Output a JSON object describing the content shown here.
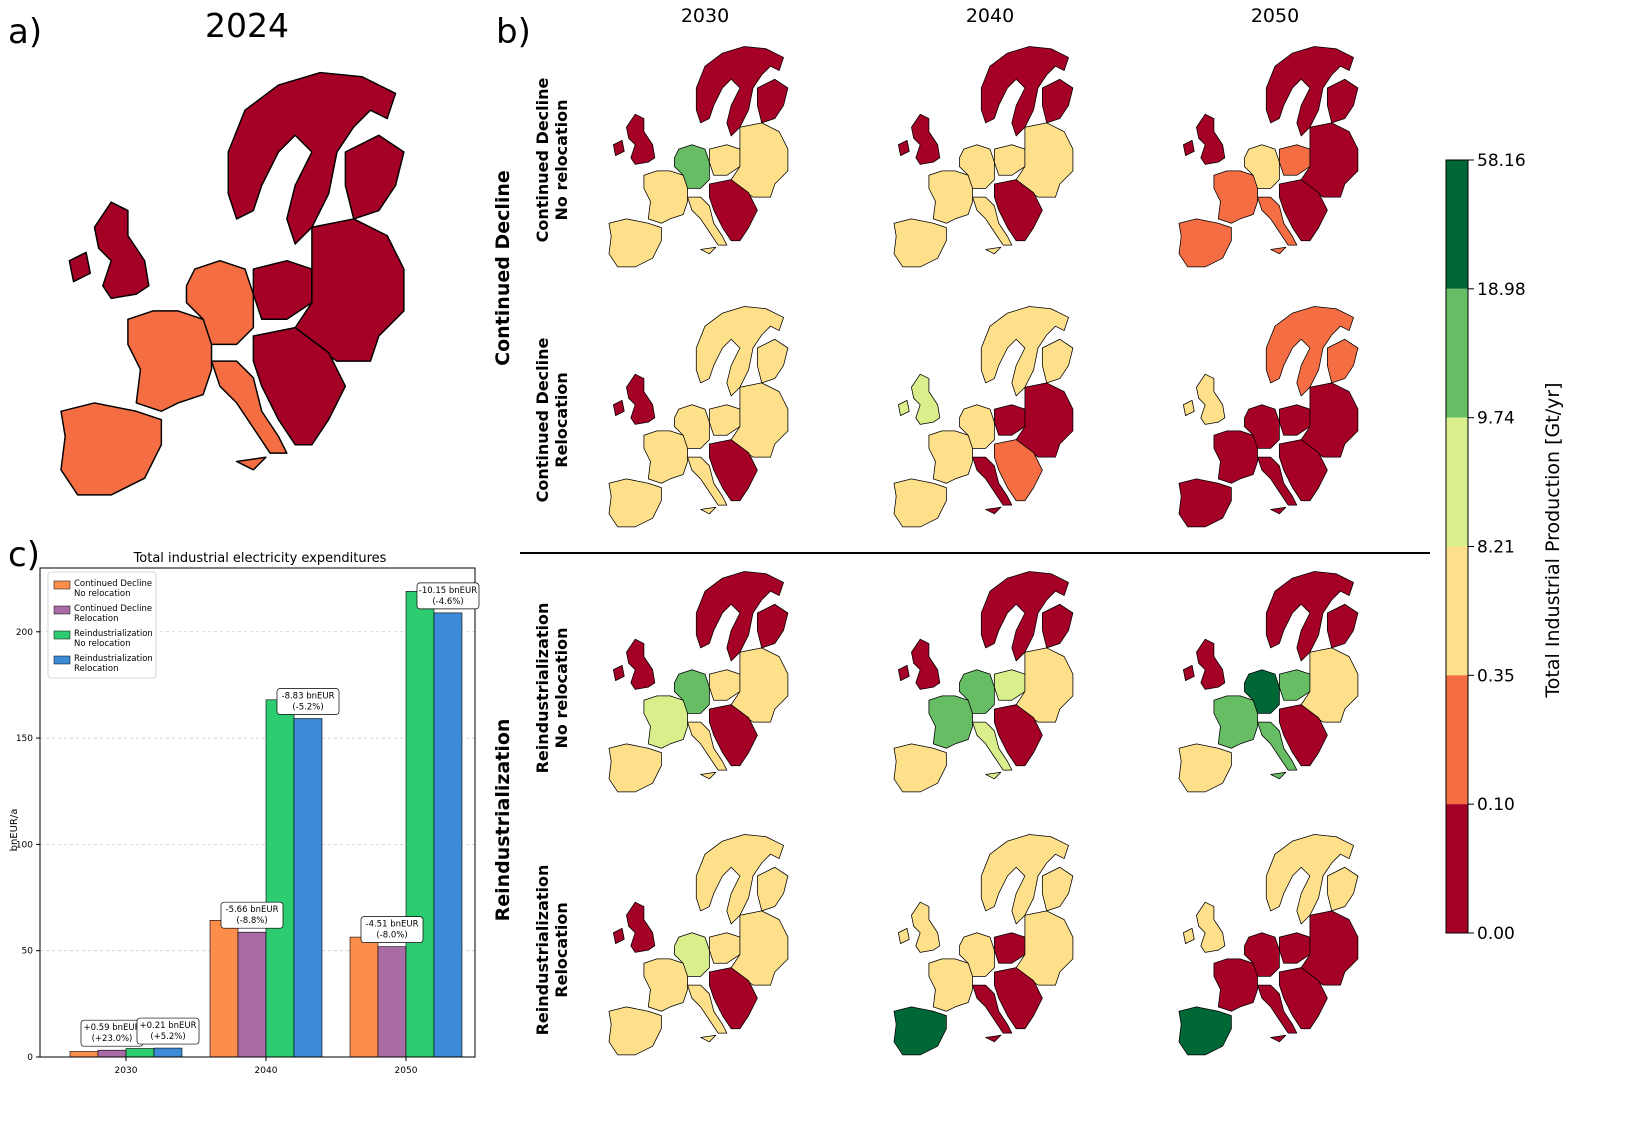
{
  "panels": {
    "a": "a)",
    "b": "b)",
    "c": "c)"
  },
  "map_a": {
    "title": "2024"
  },
  "map_b": {
    "columns": [
      "2030",
      "2040",
      "2050"
    ],
    "groups": [
      "Continued Decline",
      "Reindustrialization"
    ],
    "rows": [
      {
        "line1": "Continued Decline",
        "line2": "No relocation"
      },
      {
        "line1": "Continued Decline",
        "line2": "Relocation"
      },
      {
        "line1": "Reindustrialization",
        "line2": "No relocation"
      },
      {
        "line1": "Reindustrialization",
        "line2": "Relocation"
      }
    ]
  },
  "colorbar": {
    "label": "Total Industrial Production [Gt/yr]",
    "ticks": [
      "58.16",
      "18.98",
      "9.74",
      "8.21",
      "0.35",
      "0.10",
      "0.00"
    ],
    "colors": [
      "#006837",
      "#66bd63",
      "#d9ef8b",
      "#fee08b",
      "#f46d43",
      "#a50026"
    ]
  },
  "chart_data": {
    "type": "bar",
    "title": "Total industrial electricity expenditures",
    "xlabel": "",
    "ylabel": "bnEUR/a",
    "ylim": [
      0,
      230
    ],
    "yticks": [
      0,
      50,
      100,
      150,
      200
    ],
    "grid": true,
    "legend_position": "top-left",
    "categories": [
      "2030",
      "2040",
      "2050"
    ],
    "series": [
      {
        "name": "Continued Decline\nNo relocation",
        "color": "#fc8d4b",
        "values": [
          2.6,
          64.3,
          56.4
        ]
      },
      {
        "name": "Continued Decline\nRelocation",
        "color": "#a86ba5",
        "values": [
          3.2,
          58.7,
          51.9
        ]
      },
      {
        "name": "Reindustrialization\nNo relocation",
        "color": "#2ecc71",
        "values": [
          4.0,
          168.0,
          219.0
        ]
      },
      {
        "name": "Reindustrialization\nRelocation",
        "color": "#3d8bd6",
        "values": [
          4.2,
          159.2,
          208.9
        ]
      }
    ],
    "annotations": [
      {
        "category": "2030",
        "series": 1,
        "text": "+0.59 bnEUR\n(+23.0%)"
      },
      {
        "category": "2030",
        "series": 3,
        "text": "+0.21 bnEUR\n(+5.2%)"
      },
      {
        "category": "2040",
        "series": 1,
        "text": "-5.66 bnEUR\n(-8.8%)"
      },
      {
        "category": "2040",
        "series": 3,
        "text": "-8.83 bnEUR\n(-5.2%)"
      },
      {
        "category": "2050",
        "series": 1,
        "text": "-4.51 bnEUR\n(-8.0%)"
      },
      {
        "category": "2050",
        "series": 3,
        "text": "-10.15 bnEUR\n(-4.6%)"
      }
    ]
  },
  "map_colors": {
    "a": {
      "nordic": 5,
      "uk": 5,
      "france": 4,
      "iberia": 4,
      "germany": 4,
      "italy": 4,
      "east": 5,
      "balkan": 5,
      "pol": 5
    },
    "b": [
      [
        {
          "nordic": 5,
          "uk": 5,
          "france": 3,
          "iberia": 3,
          "germany": 1,
          "italy": 3,
          "east": 3,
          "balkan": 5,
          "pol": 3
        },
        {
          "nordic": 5,
          "uk": 5,
          "france": 3,
          "iberia": 3,
          "germany": 3,
          "italy": 3,
          "east": 3,
          "balkan": 5,
          "pol": 3
        },
        {
          "nordic": 5,
          "uk": 5,
          "france": 4,
          "iberia": 4,
          "germany": 3,
          "italy": 4,
          "east": 5,
          "balkan": 5,
          "pol": 4
        }
      ],
      [
        {
          "nordic": 3,
          "uk": 5,
          "france": 3,
          "iberia": 3,
          "germany": 3,
          "italy": 3,
          "east": 3,
          "balkan": 5,
          "pol": 3
        },
        {
          "nordic": 3,
          "uk": 2,
          "france": 3,
          "iberia": 3,
          "germany": 3,
          "italy": 5,
          "east": 5,
          "balkan": 4,
          "pol": 5
        },
        {
          "nordic": 4,
          "uk": 3,
          "france": 5,
          "iberia": 5,
          "germany": 5,
          "italy": 5,
          "east": 5,
          "balkan": 5,
          "pol": 5
        }
      ],
      [
        {
          "nordic": 5,
          "uk": 5,
          "france": 2,
          "iberia": 3,
          "germany": 1,
          "italy": 3,
          "east": 3,
          "balkan": 5,
          "pol": 3
        },
        {
          "nordic": 5,
          "uk": 5,
          "france": 1,
          "iberia": 3,
          "germany": 1,
          "italy": 2,
          "east": 3,
          "balkan": 5,
          "pol": 2
        },
        {
          "nordic": 5,
          "uk": 5,
          "france": 1,
          "iberia": 3,
          "germany": 0,
          "italy": 1,
          "east": 3,
          "balkan": 5,
          "pol": 1
        }
      ],
      [
        {
          "nordic": 3,
          "uk": 5,
          "france": 3,
          "iberia": 3,
          "germany": 2,
          "italy": 3,
          "east": 3,
          "balkan": 5,
          "pol": 3
        },
        {
          "nordic": 3,
          "uk": 3,
          "france": 3,
          "iberia": 0,
          "germany": 3,
          "italy": 5,
          "east": 3,
          "balkan": 5,
          "pol": 5
        },
        {
          "nordic": 3,
          "uk": 3,
          "france": 5,
          "iberia": 0,
          "germany": 5,
          "italy": 5,
          "east": 5,
          "balkan": 5,
          "pol": 5
        }
      ]
    ]
  }
}
